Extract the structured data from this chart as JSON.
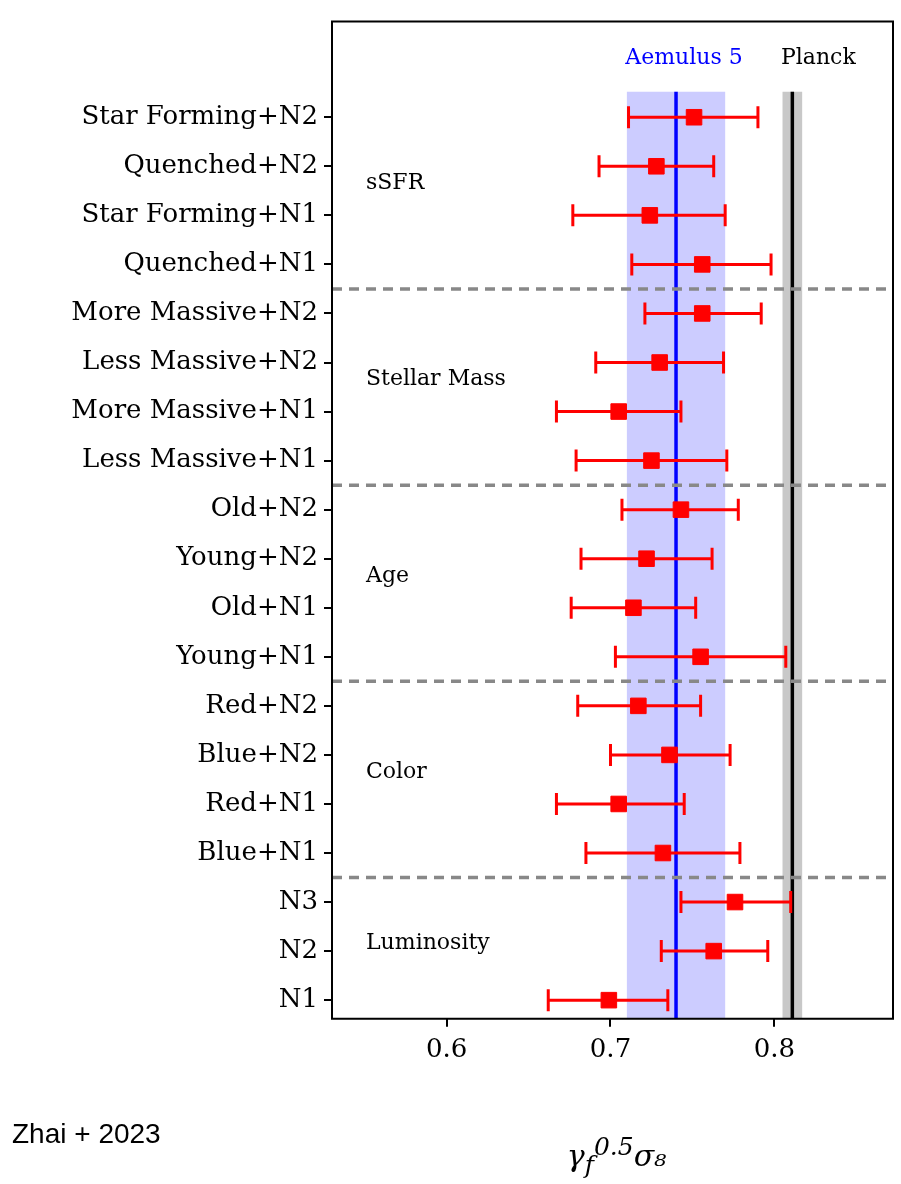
{
  "chart_data": {
    "type": "scatter",
    "orientation": "horizontal",
    "marker": "square",
    "grid": false,
    "legend": false,
    "xlabel": "γ$_{f}$$^{0.5}$σ₈",
    "categories": [
      "Star Forming+N2",
      "Quenched+N2",
      "Star Forming+N1",
      "Quenched+N1",
      "More Massive+N2",
      "Less Massive+N2",
      "More Massive+N1",
      "Less Massive+N1",
      "Old+N2",
      "Young+N2",
      "Old+N1",
      "Young+N1",
      "Red+N2",
      "Blue+N2",
      "Red+N1",
      "Blue+N1",
      "N3",
      "N2",
      "N1"
    ],
    "series": [
      {
        "color": "#ff0000",
        "values": [
          0.751,
          0.728,
          0.724,
          0.756,
          0.756,
          0.73,
          0.705,
          0.725,
          0.743,
          0.722,
          0.714,
          0.755,
          0.717,
          0.736,
          0.705,
          0.732,
          0.776,
          0.763,
          0.699
        ],
        "errors": [
          [
            0.711,
            0.79
          ],
          [
            0.693,
            0.763
          ],
          [
            0.677,
            0.77
          ],
          [
            0.713,
            0.798
          ],
          [
            0.721,
            0.792
          ],
          [
            0.691,
            0.769
          ],
          [
            0.667,
            0.743
          ],
          [
            0.679,
            0.771
          ],
          [
            0.707,
            0.778
          ],
          [
            0.682,
            0.762
          ],
          [
            0.676,
            0.752
          ],
          [
            0.703,
            0.807
          ],
          [
            0.68,
            0.755
          ],
          [
            0.7,
            0.773
          ],
          [
            0.667,
            0.745
          ],
          [
            0.685,
            0.779
          ],
          [
            0.743,
            0.81
          ],
          [
            0.731,
            0.796
          ],
          [
            0.662,
            0.735
          ]
        ]
      }
    ],
    "xlim": [
      0.53,
      0.87
    ],
    "xticks": [
      0.6,
      0.7,
      0.8
    ],
    "bands": [
      {
        "axis": "x",
        "from": 0.71,
        "to": 0.77,
        "color": "#ccccff"
      },
      {
        "axis": "x",
        "from": 0.805,
        "to": 0.817,
        "color": "#c8c8c8"
      }
    ],
    "ref_lines": [
      {
        "axis": "x",
        "value": 0.74,
        "label": "Aemulus 5",
        "color": "#0000ff",
        "line_style": "solid"
      },
      {
        "axis": "x",
        "value": 0.811,
        "label": "Planck",
        "color": "#000000",
        "line_style": "solid"
      },
      {
        "axis": "y",
        "value": "Quenched+N1",
        "color": "#888888",
        "line_style": "dashed"
      },
      {
        "axis": "y",
        "value": "Less Massive+N1",
        "color": "#888888",
        "line_style": "dashed"
      },
      {
        "axis": "y",
        "value": "Young+N1",
        "color": "#888888",
        "line_style": "dashed"
      },
      {
        "axis": "y",
        "value": "Blue+N1",
        "color": "#888888",
        "line_style": "dashed"
      }
    ],
    "annotations": [
      "sSFR",
      "Stellar Mass",
      "Age",
      "Color",
      "Luminosity",
      "Zhai + 2023"
    ]
  }
}
